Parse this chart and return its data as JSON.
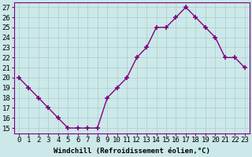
{
  "x": [
    0,
    1,
    2,
    3,
    4,
    5,
    6,
    7,
    8,
    9,
    10,
    11,
    12,
    13,
    14,
    15,
    16,
    17,
    18,
    19,
    20,
    21,
    22,
    23
  ],
  "y": [
    20,
    19,
    18,
    17,
    16,
    15,
    15,
    15,
    15,
    18,
    19,
    20,
    22,
    23,
    25,
    25,
    26,
    27,
    26,
    25,
    24,
    22,
    22,
    21
  ],
  "line_color": "#800080",
  "marker_color": "#800080",
  "bg_color": "#cce8e8",
  "grid_color": "#aacccc",
  "xlabel": "Windchill (Refroidissement éolien,°C)",
  "ylabel_ticks": [
    15,
    16,
    17,
    18,
    19,
    20,
    21,
    22,
    23,
    24,
    25,
    26,
    27
  ],
  "xlim": [
    -0.5,
    23.5
  ],
  "ylim": [
    14.5,
    27.5
  ],
  "xtick_labels": [
    "0",
    "1",
    "2",
    "3",
    "4",
    "5",
    "6",
    "7",
    "8",
    "9",
    "10",
    "11",
    "12",
    "13",
    "14",
    "15",
    "16",
    "17",
    "18",
    "19",
    "20",
    "21",
    "22",
    "23"
  ],
  "xlabel_fontsize": 6.5,
  "tick_fontsize": 6.5,
  "line_width": 1.0,
  "marker_size": 4
}
